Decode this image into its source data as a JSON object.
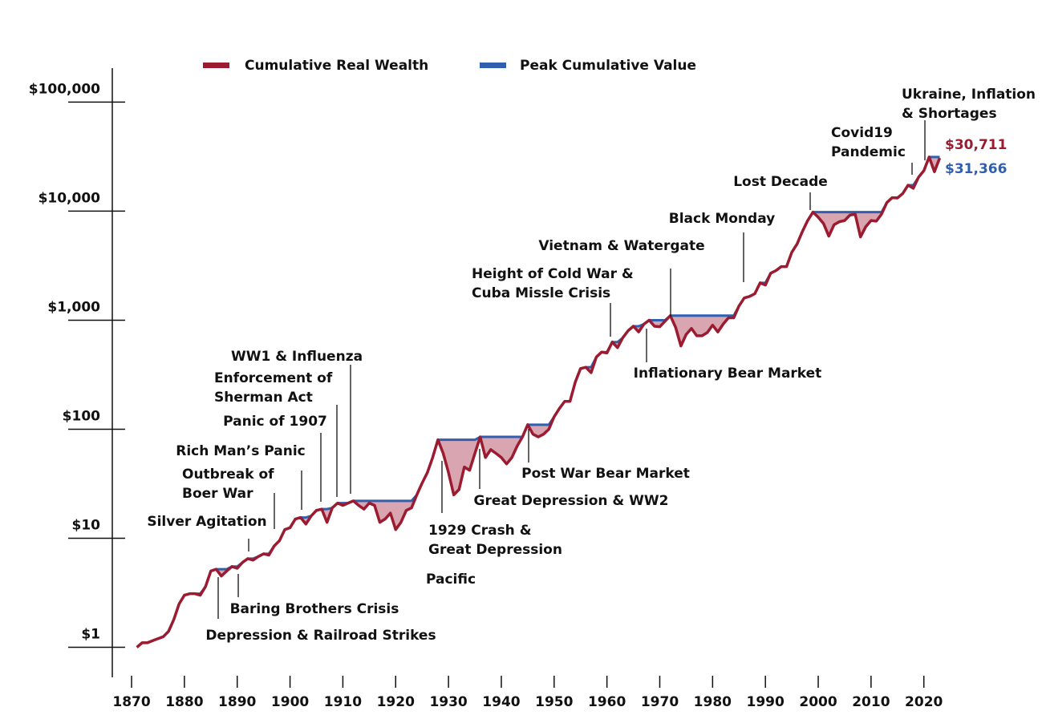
{
  "chart_data": {
    "type": "line",
    "log_y": true,
    "legend": "top",
    "xlim": [
      1866.35,
      2041
    ],
    "ylim": [
      0.53,
      205000
    ],
    "xticks": [
      1870,
      1880,
      1890,
      1900,
      1910,
      1920,
      1930,
      1940,
      1950,
      1960,
      1970,
      1980,
      1990,
      2000,
      2010,
      2020
    ],
    "yticks": [
      {
        "value": 1,
        "label": "$1"
      },
      {
        "value": 10,
        "label": "$10"
      },
      {
        "value": 100,
        "label": "$100"
      },
      {
        "value": 1000,
        "label": "$1,000"
      },
      {
        "value": 10000,
        "label": "$10,000"
      },
      {
        "value": 100000,
        "label": "$100,000"
      }
    ],
    "x": [
      1871,
      1872,
      1873,
      1874,
      1875,
      1876,
      1877,
      1878,
      1879,
      1880,
      1881,
      1882,
      1883,
      1884,
      1885,
      1886,
      1887,
      1888,
      1889,
      1890,
      1891,
      1892,
      1893,
      1894,
      1895,
      1896,
      1897,
      1898,
      1899,
      1900,
      1901,
      1902,
      1903,
      1904,
      1905,
      1906,
      1907,
      1908,
      1909,
      1910,
      1911,
      1912,
      1913,
      1914,
      1915,
      1916,
      1917,
      1918,
      1919,
      1920,
      1921,
      1922,
      1923,
      1924,
      1925,
      1926,
      1927,
      1928,
      1929,
      1930,
      1931,
      1932,
      1933,
      1934,
      1935,
      1936,
      1937,
      1938,
      1939,
      1940,
      1941,
      1942,
      1943,
      1944,
      1945,
      1946,
      1947,
      1948,
      1949,
      1950,
      1951,
      1952,
      1953,
      1954,
      1955,
      1956,
      1957,
      1958,
      1959,
      1960,
      1961,
      1962,
      1963,
      1964,
      1965,
      1966,
      1967,
      1968,
      1969,
      1970,
      1971,
      1972,
      1973,
      1974,
      1975,
      1976,
      1977,
      1978,
      1979,
      1980,
      1981,
      1982,
      1983,
      1984,
      1985,
      1986,
      1987,
      1988,
      1989,
      1990,
      1991,
      1992,
      1993,
      1994,
      1995,
      1996,
      1997,
      1998,
      1999,
      2000,
      2001,
      2002,
      2003,
      2004,
      2005,
      2006,
      2007,
      2008,
      2009,
      2010,
      2011,
      2012,
      2013,
      2014,
      2015,
      2016,
      2017,
      2018,
      2019,
      2020,
      2021,
      2022,
      2023
    ],
    "series": [
      {
        "name": "Cumulative Real Wealth",
        "color": "#9b1b30",
        "values": [
          1.0,
          1.1,
          1.1,
          1.15,
          1.2,
          1.25,
          1.4,
          1.8,
          2.5,
          3.0,
          3.1,
          3.1,
          3.0,
          3.6,
          5.0,
          5.2,
          4.5,
          5.0,
          5.5,
          5.3,
          6.0,
          6.5,
          6.3,
          6.8,
          7.2,
          7.0,
          8.5,
          9.5,
          12,
          12.5,
          15,
          15.5,
          13.5,
          16,
          18,
          18.5,
          14,
          19,
          21,
          20,
          21,
          22,
          20,
          18.5,
          21,
          20,
          14,
          15,
          17,
          12,
          14,
          18,
          19,
          25,
          32,
          40,
          55,
          80,
          60,
          40,
          25,
          28,
          45,
          42,
          60,
          85,
          55,
          65,
          60,
          55,
          48,
          55,
          70,
          85,
          110,
          90,
          85,
          90,
          100,
          130,
          155,
          180,
          180,
          270,
          360,
          370,
          330,
          460,
          510,
          500,
          630,
          560,
          690,
          800,
          880,
          780,
          920,
          1000,
          880,
          870,
          980,
          1100,
          860,
          580,
          740,
          840,
          720,
          720,
          770,
          900,
          780,
          920,
          1050,
          1050,
          1350,
          1600,
          1650,
          1750,
          2200,
          2100,
          2700,
          2850,
          3100,
          3100,
          4200,
          5000,
          6500,
          8200,
          9800,
          8800,
          7700,
          5900,
          7500,
          8000,
          8200,
          9200,
          9400,
          5800,
          7200,
          8200,
          8100,
          9400,
          12000,
          13300,
          13200,
          14500,
          17300,
          16200,
          20500,
          23500,
          31366,
          23000,
          30711
        ],
        "value_labels": {
          "152": "$30,711"
        }
      },
      {
        "name": "Peak Cumulative Value",
        "color": "#2f5fae",
        "values": [
          1.0,
          1.1,
          1.1,
          1.15,
          1.2,
          1.25,
          1.4,
          1.8,
          2.5,
          3.0,
          3.1,
          3.1,
          3.1,
          3.6,
          5.0,
          5.2,
          5.2,
          5.2,
          5.5,
          5.5,
          6.0,
          6.5,
          6.5,
          6.8,
          7.2,
          7.2,
          8.5,
          9.5,
          12,
          12.5,
          15,
          15.5,
          15.5,
          16,
          18,
          18.5,
          18.5,
          19,
          21,
          21,
          21,
          22,
          22,
          22,
          22,
          22,
          22,
          22,
          22,
          22,
          22,
          22,
          22,
          25,
          32,
          40,
          55,
          80,
          80,
          80,
          80,
          80,
          80,
          80,
          80,
          85,
          85,
          85,
          85,
          85,
          85,
          85,
          85,
          85,
          110,
          110,
          110,
          110,
          110,
          130,
          155,
          180,
          180,
          270,
          360,
          370,
          370,
          460,
          510,
          510,
          630,
          630,
          690,
          800,
          880,
          880,
          920,
          1000,
          1000,
          1000,
          1000,
          1100,
          1100,
          1100,
          1100,
          1100,
          1100,
          1100,
          1100,
          1100,
          1100,
          1100,
          1100,
          1100,
          1350,
          1600,
          1650,
          1750,
          2200,
          2200,
          2700,
          2850,
          3100,
          3100,
          4200,
          5000,
          6500,
          8200,
          9800,
          9800,
          9800,
          9800,
          9800,
          9800,
          9800,
          9800,
          9800,
          9800,
          9800,
          9800,
          9800,
          9800,
          12000,
          13300,
          13300,
          14500,
          17300,
          17300,
          20500,
          23500,
          31366,
          31366,
          31366
        ],
        "value_labels": {
          "152": "$31,366"
        }
      }
    ],
    "annotations": [
      {
        "lines": [
          "Depression & Railroad Strikes"
        ]
      },
      {
        "lines": [
          "Baring Brothers Crisis"
        ]
      },
      {
        "lines": [
          "Silver Agitation"
        ]
      },
      {
        "lines": [
          "Outbreak of",
          "Boer War"
        ]
      },
      {
        "lines": [
          "Rich Man’s Panic"
        ]
      },
      {
        "lines": [
          "Panic of 1907"
        ]
      },
      {
        "lines": [
          "Enforcement of",
          "Sherman Act"
        ]
      },
      {
        "lines": [
          "WW1 & Influenza"
        ]
      },
      {
        "lines": [
          "1929 Crash &",
          "Great Depression"
        ]
      },
      {
        "lines": [
          "Great Depression & WW2"
        ]
      },
      {
        "lines": [
          "Pacific"
        ]
      },
      {
        "lines": [
          "Post War Bear Market"
        ]
      },
      {
        "lines": [
          "Height of Cold War &",
          "Cuba Missle Crisis"
        ]
      },
      {
        "lines": [
          "Vietnam & Watergate"
        ]
      },
      {
        "lines": [
          "Inflationary Bear Market"
        ]
      },
      {
        "lines": [
          "Black Monday"
        ]
      },
      {
        "lines": [
          "Lost Decade"
        ]
      },
      {
        "lines": [
          "Covid19",
          "Pandemic"
        ]
      },
      {
        "lines": [
          "Ukraine, Inflation",
          "& Shortages"
        ]
      }
    ]
  }
}
